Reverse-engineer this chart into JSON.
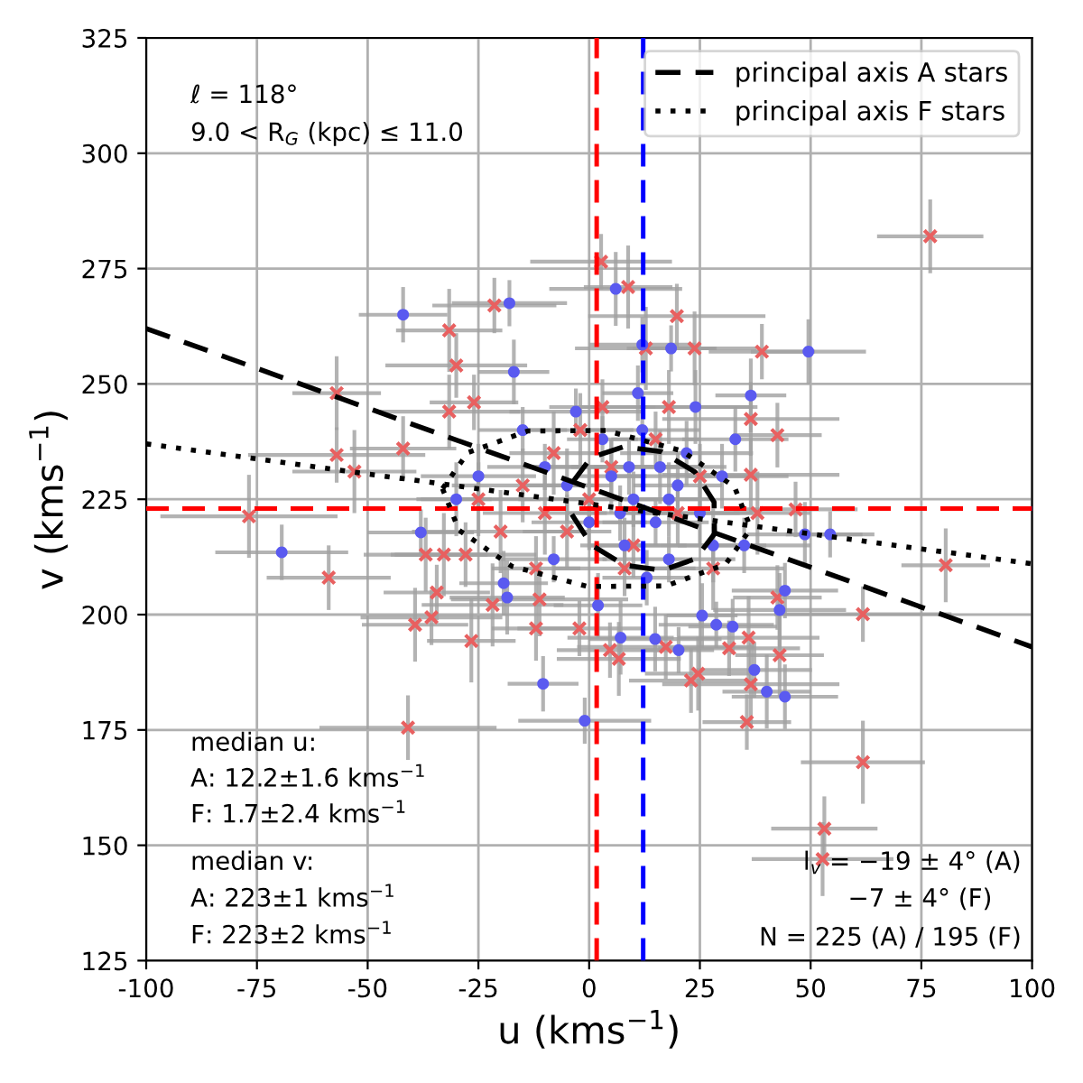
{
  "chart_data": {
    "type": "scatter",
    "xlabel": "u (kms$^{−1}$)",
    "ylabel": "v (kms$^{−1}$)",
    "xlim": [
      -100,
      100
    ],
    "xticks": [
      -100,
      -75,
      -50,
      -25,
      0,
      25,
      50,
      75,
      100
    ],
    "ylim": [
      125,
      325
    ],
    "yticks": [
      125,
      150,
      175,
      200,
      225,
      250,
      275,
      300,
      325
    ],
    "grid": true,
    "legend": "top right",
    "annotations": [
      "ℓ = 118°",
      "9.0 < R$_{G}$ (kpc) ≤ 11.0",
      "median u:",
      "A: 12.2±1.6 kms$^{−1}$",
      "F: 1.7±2.4 kms$^{−1}$",
      "median v:",
      "A: 223±1 kms$^{−1}$",
      "F: 223±2 kms$^{−1}$",
      "l$_{v}$ = −19 ± 4° (A)",
      "−7 ± 4° (F)",
      "N = 225 (A) / 195 (F)"
    ],
    "ref_lines": [
      {
        "axis": "x",
        "value": 1.7,
        "color": "#ff0000",
        "line_style": "dashed"
      },
      {
        "axis": "x",
        "value": 12.2,
        "color": "#0000ff",
        "line_style": "dashed"
      },
      {
        "axis": "y",
        "value": 223,
        "color": "#0000ff",
        "line_style": "dashed"
      },
      {
        "axis": "y",
        "value": 223,
        "color": "#ff0000",
        "line_style": "dashed"
      }
    ],
    "series": [
      {
        "color": "#e86060",
        "marker": "cross",
        "x": [
          77,
          2.7,
          8.8,
          19.8,
          23.8,
          39,
          12.8,
          42.5,
          36.5,
          -21.4,
          -31.6,
          -30,
          -57,
          -57,
          -53,
          -42,
          -31.6,
          -26,
          -76.8,
          -58.8,
          -39.3,
          -35.6,
          -26.6,
          -40.9,
          -36.9,
          -34.4,
          -21.8,
          -12,
          -11.2,
          -2.2,
          -32.8,
          -27.9,
          80.5,
          61.8,
          61.8,
          53.1,
          52.7,
          35.6,
          36.5,
          23,
          24.6,
          31.6,
          43,
          17.3,
          6.7,
          4.7,
          36,
          42.5,
          36.5,
          46.6,
          38,
          0,
          -5,
          5,
          -10,
          10,
          -15,
          15,
          -20,
          20,
          -2,
          8,
          -8,
          25,
          -25,
          3,
          28,
          -12,
          18
        ],
        "values": [
          282,
          276.5,
          271,
          264.7,
          257.7,
          257,
          257.7,
          238.9,
          242.4,
          267,
          261.6,
          254,
          248,
          234.6,
          231,
          236,
          244,
          246,
          221.3,
          208,
          197.8,
          199.4,
          194.3,
          175.5,
          213,
          204.8,
          202.1,
          197,
          203.3,
          197,
          213,
          213,
          210.7,
          200.1,
          168,
          153.6,
          147,
          176.7,
          184.9,
          185.7,
          187.2,
          192.7,
          191.2,
          193,
          190.4,
          192.3,
          195,
          203.7,
          230.3,
          222.8,
          222,
          225,
          218,
          232,
          222,
          215,
          228,
          238,
          218,
          222,
          240,
          210,
          235,
          230,
          225,
          245,
          210,
          210,
          245
        ],
        "errors": [
          8,
          6,
          9,
          7,
          8,
          6,
          9,
          7,
          8,
          6,
          9,
          7,
          8,
          6,
          9,
          7,
          8,
          6,
          9,
          7,
          8,
          6,
          9,
          7,
          8,
          6,
          9,
          7,
          8,
          6,
          9,
          7,
          8,
          6,
          9,
          7,
          8,
          6,
          9,
          7,
          8,
          6,
          9,
          7,
          8,
          6,
          9,
          7,
          8,
          6,
          9,
          7,
          8,
          6,
          9,
          7,
          8,
          6,
          9,
          7,
          8,
          6,
          9,
          7,
          8,
          6,
          9,
          7,
          8
        ],
        "xerrors": [
          12,
          16,
          10,
          20,
          14,
          12,
          16,
          10,
          20,
          14,
          12,
          16,
          10,
          20,
          14,
          12,
          16,
          10,
          20,
          14,
          12,
          16,
          10,
          20,
          14,
          12,
          16,
          10,
          20,
          14,
          12,
          16,
          10,
          20,
          14,
          12,
          16,
          10,
          20,
          14,
          12,
          16,
          10,
          20,
          14,
          12,
          16,
          10,
          20,
          14,
          12,
          16,
          10,
          20,
          14,
          12,
          16,
          10,
          20,
          14,
          12,
          16,
          10,
          20,
          14,
          12,
          16,
          10,
          20
        ]
      },
      {
        "color": "#5a5af0",
        "marker": "circle",
        "x": [
          -42,
          -18,
          -17,
          6,
          12,
          18.5,
          49.5,
          36.5,
          -69.4,
          -38,
          -19.3,
          -18.5,
          -10.4,
          -1,
          44.2,
          40.1,
          37.3,
          20.2,
          14.9,
          7.1,
          32.4,
          28.7,
          25.5,
          43,
          44.2,
          54.4,
          48.7,
          5,
          10,
          15,
          20,
          12,
          8,
          18,
          25,
          -5,
          0,
          3,
          22,
          28,
          13,
          -10,
          30,
          16,
          7,
          -15,
          -25,
          -30,
          35,
          -8,
          2,
          24,
          11,
          -3,
          33,
          18,
          9
        ],
        "values": [
          265,
          267.5,
          252.6,
          270.6,
          258.5,
          257.7,
          257,
          247.5,
          213.5,
          217.8,
          206.8,
          203.7,
          185,
          177,
          182.2,
          183.3,
          188,
          192.3,
          194.7,
          195,
          197.4,
          197.8,
          199.8,
          201,
          205.2,
          217.4,
          217.4,
          230,
          225,
          220,
          228,
          240,
          215,
          212,
          222,
          228,
          220,
          238,
          235,
          215,
          208,
          232,
          230,
          232,
          222,
          240,
          230,
          225,
          215,
          212,
          202,
          245,
          248,
          244,
          238,
          225,
          232
        ],
        "errors": [
          6,
          5,
          7,
          8,
          6,
          5,
          7,
          8,
          6,
          5,
          7,
          8,
          6,
          5,
          7,
          8,
          6,
          5,
          7,
          8,
          6,
          5,
          7,
          8,
          6,
          5,
          7,
          8,
          6,
          5,
          7,
          8,
          6,
          5,
          7,
          8,
          6,
          5,
          7,
          8,
          6,
          5,
          7,
          8,
          6,
          5,
          7,
          8,
          6,
          5,
          7,
          8,
          6,
          5,
          7,
          8,
          6
        ],
        "xerrors": [
          10,
          13,
          8,
          15,
          12,
          10,
          13,
          8,
          15,
          12,
          10,
          13,
          8,
          15,
          12,
          10,
          13,
          8,
          15,
          12,
          10,
          13,
          8,
          15,
          12,
          10,
          13,
          8,
          15,
          12,
          10,
          13,
          8,
          15,
          12,
          10,
          13,
          8,
          15,
          12,
          10,
          13,
          8,
          15,
          12,
          10,
          13,
          8,
          15,
          12,
          10,
          13,
          8,
          15,
          12,
          10,
          13
        ]
      },
      {
        "type": "line",
        "name": "principal axis A stars",
        "color": "#000000",
        "line_style": "dashed",
        "x": [
          -100,
          100
        ],
        "values": [
          262,
          193
        ]
      },
      {
        "type": "line",
        "name": "principal axis F stars",
        "color": "#000000",
        "line_style": "dotted",
        "x": [
          -100,
          100
        ],
        "values": [
          237,
          211
        ]
      },
      {
        "type": "line",
        "color": "#000000",
        "line_style": "dashed",
        "x": [
          -3.9,
          0.4,
          7.8,
          16.4,
          23.9,
          28.2,
          28.3
        ],
        "values": [
          228.5,
          234.0,
          236.4,
          235.3,
          230.9,
          224.4,
          217.5
        ]
      },
      {
        "type": "line",
        "color": "#000000",
        "line_style": "dashed",
        "x": [
          -3.9,
          0.5,
          8.0,
          16.6,
          24.0,
          28.3
        ],
        "values": [
          221.7,
          215.1,
          210.7,
          209.6,
          212.1,
          217.5
        ]
      },
      {
        "type": "line",
        "color": "#000000",
        "line_style": "dotted",
        "x": [
          -33.1,
          -27.4,
          -13.9,
          3.8,
          20.9,
          32.8,
          36.5
        ],
        "values": [
          227.3,
          235.1,
          239.8,
          239.9,
          235.5,
          227.7,
          218.7
        ]
      },
      {
        "type": "line",
        "color": "#000000",
        "line_style": "dotted",
        "x": [
          -33.1,
          -29.4,
          -17.5,
          -0.4,
          17.3,
          30.8,
          36.5
        ],
        "values": [
          227.3,
          218.3,
          210.5,
          206.1,
          206.2,
          210.9,
          218.7
        ]
      }
    ]
  }
}
